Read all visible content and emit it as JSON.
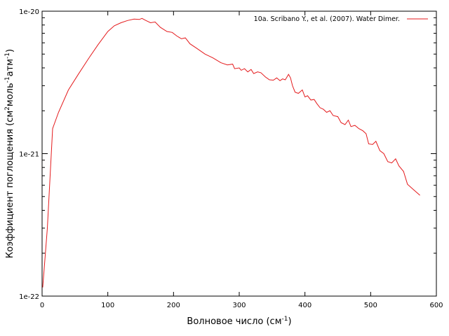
{
  "chart_data": {
    "type": "line",
    "x_scale": "linear",
    "y_scale": "log",
    "xlim": [
      0,
      600
    ],
    "ylim": [
      1e-22,
      1e-20
    ],
    "x_ticks": [
      0,
      100,
      200,
      300,
      400,
      500,
      600
    ],
    "x_tick_labels": [
      "0",
      "100",
      "200",
      "300",
      "400",
      "500",
      "600"
    ],
    "y_ticks": [
      1e-22,
      1e-21,
      1e-20
    ],
    "y_tick_labels": [
      "1e-22",
      "1e-21",
      "1e-20"
    ],
    "xlabel": {
      "text": "Волновое число (см",
      "sup": "-1",
      "tail": ")"
    },
    "ylabel": {
      "parts": [
        {
          "t": "Коэффициент поглощения (см",
          "sup": false
        },
        {
          "t": "2",
          "sup": true
        },
        {
          "t": "моль",
          "sup": false
        },
        {
          "t": "-1",
          "sup": true
        },
        {
          "t": "атм",
          "sup": false
        },
        {
          "t": "-1",
          "sup": true
        },
        {
          "t": ")",
          "sup": false
        }
      ]
    },
    "grid": false,
    "legend_position": "top-right",
    "series": [
      {
        "name": "10a. Scribano Y., et al. (2007). Water Dimer.",
        "color": "#e41a1c",
        "points": [
          [
            1,
            1.15e-22
          ],
          [
            8,
            3e-22
          ],
          [
            16,
            1.5e-21
          ],
          [
            25,
            1.95e-21
          ],
          [
            40,
            2.8e-21
          ],
          [
            55,
            3.6e-21
          ],
          [
            70,
            4.6e-21
          ],
          [
            85,
            5.8e-21
          ],
          [
            100,
            7.2e-21
          ],
          [
            110,
            7.9e-21
          ],
          [
            120,
            8.3e-21
          ],
          [
            130,
            8.6e-21
          ],
          [
            140,
            8.8e-21
          ],
          [
            148,
            8.75e-21
          ],
          [
            152,
            8.9e-21
          ],
          [
            158,
            8.6e-21
          ],
          [
            165,
            8.3e-21
          ],
          [
            172,
            8.4e-21
          ],
          [
            180,
            7.7e-21
          ],
          [
            190,
            7.2e-21
          ],
          [
            198,
            7.1e-21
          ],
          [
            205,
            6.7e-21
          ],
          [
            212,
            6.4e-21
          ],
          [
            218,
            6.5e-21
          ],
          [
            225,
            5.9e-21
          ],
          [
            235,
            5.5e-21
          ],
          [
            248,
            5e-21
          ],
          [
            260,
            4.7e-21
          ],
          [
            272,
            4.35e-21
          ],
          [
            282,
            4.2e-21
          ],
          [
            290,
            4.25e-21
          ],
          [
            293,
            3.95e-21
          ],
          [
            300,
            4e-21
          ],
          [
            303,
            3.85e-21
          ],
          [
            308,
            3.95e-21
          ],
          [
            313,
            3.75e-21
          ],
          [
            318,
            3.9e-21
          ],
          [
            322,
            3.65e-21
          ],
          [
            328,
            3.75e-21
          ],
          [
            333,
            3.7e-21
          ],
          [
            340,
            3.45e-21
          ],
          [
            346,
            3.3e-21
          ],
          [
            352,
            3.28e-21
          ],
          [
            357,
            3.4e-21
          ],
          [
            362,
            3.25e-21
          ],
          [
            366,
            3.35e-21
          ],
          [
            370,
            3.3e-21
          ],
          [
            375,
            3.6e-21
          ],
          [
            378,
            3.4e-21
          ],
          [
            381,
            3e-21
          ],
          [
            385,
            2.7e-21
          ],
          [
            390,
            2.65e-21
          ],
          [
            396,
            2.8e-21
          ],
          [
            400,
            2.5e-21
          ],
          [
            404,
            2.55e-21
          ],
          [
            409,
            2.38e-21
          ],
          [
            414,
            2.4e-21
          ],
          [
            418,
            2.25e-21
          ],
          [
            423,
            2.1e-21
          ],
          [
            428,
            2.05e-21
          ],
          [
            433,
            1.95e-21
          ],
          [
            438,
            2e-21
          ],
          [
            443,
            1.85e-21
          ],
          [
            450,
            1.82e-21
          ],
          [
            455,
            1.65e-21
          ],
          [
            461,
            1.6e-21
          ],
          [
            466,
            1.72e-21
          ],
          [
            470,
            1.55e-21
          ],
          [
            476,
            1.58e-21
          ],
          [
            482,
            1.5e-21
          ],
          [
            488,
            1.45e-21
          ],
          [
            493,
            1.38e-21
          ],
          [
            497,
            1.17e-21
          ],
          [
            503,
            1.16e-21
          ],
          [
            508,
            1.22e-21
          ],
          [
            514,
            1.05e-21
          ],
          [
            520,
            1e-21
          ],
          [
            526,
            8.8e-22
          ],
          [
            532,
            8.6e-22
          ],
          [
            538,
            9.2e-22
          ],
          [
            543,
            8.2e-22
          ],
          [
            550,
            7.5e-22
          ],
          [
            556,
            6.1e-22
          ],
          [
            565,
            5.6e-22
          ],
          [
            575,
            5.1e-22
          ]
        ]
      }
    ]
  }
}
